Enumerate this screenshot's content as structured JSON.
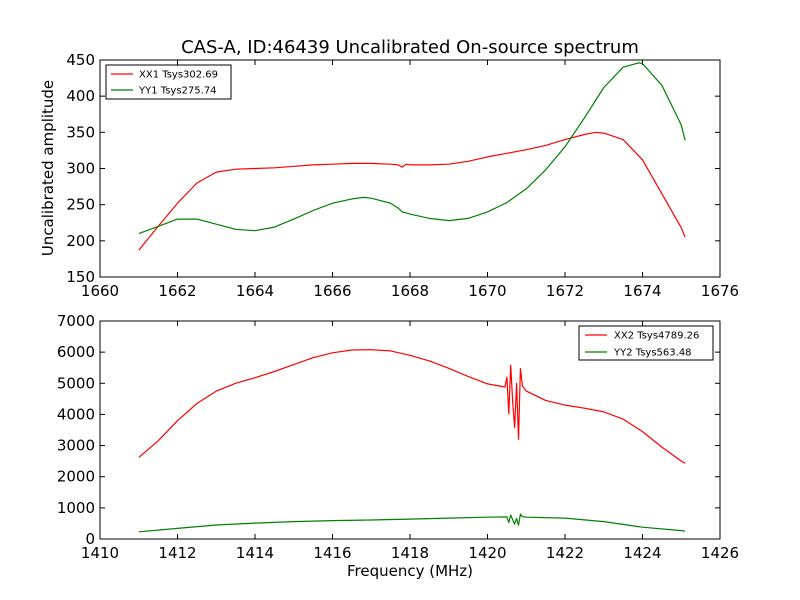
{
  "figure": {
    "title": "CAS-A, ID:46439 Uncalibrated On-source spectrum"
  },
  "chart_data": [
    {
      "type": "line",
      "title": "CAS-A, ID:46439 Uncalibrated On-source spectrum",
      "xlabel": "",
      "ylabel": "Uncalibrated amplitude",
      "xlim": [
        1660,
        1676
      ],
      "ylim": [
        150,
        450
      ],
      "xticks": [
        1660,
        1662,
        1664,
        1666,
        1668,
        1670,
        1672,
        1674,
        1676
      ],
      "yticks": [
        150,
        200,
        250,
        300,
        350,
        400,
        450
      ],
      "grid": false,
      "legend_position": "upper-left",
      "series": [
        {
          "name": "XX1 Tsys302.69",
          "color": "#ff0000",
          "x": [
            1661.0,
            1661.5,
            1662.0,
            1662.5,
            1663.0,
            1663.5,
            1664.0,
            1664.5,
            1665.0,
            1665.5,
            1666.0,
            1666.5,
            1667.0,
            1667.5,
            1667.7,
            1667.8,
            1667.9,
            1668.0,
            1668.5,
            1669.0,
            1669.5,
            1670.0,
            1670.5,
            1671.0,
            1671.5,
            1672.0,
            1672.5,
            1672.8,
            1673.0,
            1673.5,
            1674.0,
            1674.5,
            1675.0,
            1675.1
          ],
          "y": [
            187,
            220,
            252,
            280,
            295,
            299,
            300,
            301,
            303,
            305,
            306,
            307,
            307,
            306,
            305,
            302,
            306,
            305,
            305,
            306,
            310,
            316,
            321,
            326,
            332,
            340,
            347,
            350,
            349,
            340,
            312,
            265,
            218,
            205
          ]
        },
        {
          "name": "YY1 Tsys275.74",
          "color": "#008000",
          "x": [
            1661.0,
            1661.5,
            1662.0,
            1662.5,
            1663.0,
            1663.5,
            1664.0,
            1664.5,
            1665.0,
            1665.5,
            1666.0,
            1666.5,
            1666.8,
            1667.0,
            1667.5,
            1667.7,
            1667.8,
            1668.0,
            1668.5,
            1669.0,
            1669.5,
            1670.0,
            1670.5,
            1671.0,
            1671.5,
            1672.0,
            1672.5,
            1673.0,
            1673.5,
            1673.9,
            1674.0,
            1674.5,
            1675.0,
            1675.1
          ],
          "y": [
            210,
            220,
            230,
            230,
            223,
            216,
            214,
            219,
            230,
            242,
            252,
            258,
            260,
            259,
            252,
            245,
            240,
            237,
            231,
            228,
            231,
            240,
            253,
            272,
            298,
            330,
            370,
            412,
            440,
            446,
            445,
            415,
            360,
            339
          ]
        }
      ]
    },
    {
      "type": "line",
      "title": "",
      "xlabel": "Frequency (MHz)",
      "ylabel": "",
      "xlim": [
        1410,
        1426
      ],
      "ylim": [
        0,
        7000
      ],
      "xticks": [
        1410,
        1412,
        1414,
        1416,
        1418,
        1420,
        1422,
        1424,
        1426
      ],
      "yticks": [
        0,
        1000,
        2000,
        3000,
        4000,
        5000,
        6000,
        7000
      ],
      "grid": false,
      "legend_position": "upper-right",
      "series": [
        {
          "name": "XX2 Tsys4789.26",
          "color": "#ff0000",
          "x": [
            1411.0,
            1411.5,
            1412.0,
            1412.5,
            1413.0,
            1413.5,
            1414.0,
            1414.5,
            1415.0,
            1415.5,
            1416.0,
            1416.5,
            1417.0,
            1417.5,
            1418.0,
            1418.5,
            1419.0,
            1419.5,
            1420.0,
            1420.45,
            1420.5,
            1420.55,
            1420.6,
            1420.65,
            1420.7,
            1420.75,
            1420.8,
            1420.85,
            1420.9,
            1421.0,
            1421.5,
            1422.0,
            1422.5,
            1423.0,
            1423.5,
            1424.0,
            1424.5,
            1425.0,
            1425.1
          ],
          "y": [
            2620,
            3150,
            3800,
            4350,
            4750,
            5000,
            5180,
            5380,
            5600,
            5820,
            5980,
            6070,
            6080,
            6040,
            5900,
            5720,
            5480,
            5220,
            4980,
            4880,
            5200,
            4020,
            5580,
            4400,
            3580,
            5000,
            3200,
            5470,
            4920,
            4750,
            4450,
            4300,
            4200,
            4080,
            3850,
            3450,
            2950,
            2500,
            2430
          ]
        },
        {
          "name": "YY2 Tsys563.48",
          "color": "#008000",
          "x": [
            1411.0,
            1412.0,
            1413.0,
            1414.0,
            1415.0,
            1416.0,
            1417.0,
            1418.0,
            1419.0,
            1420.0,
            1420.5,
            1420.55,
            1420.6,
            1420.7,
            1420.75,
            1420.8,
            1420.85,
            1420.9,
            1421.0,
            1422.0,
            1423.0,
            1424.0,
            1425.0,
            1425.1
          ],
          "y": [
            230,
            340,
            450,
            510,
            560,
            590,
            610,
            640,
            670,
            700,
            710,
            530,
            770,
            480,
            660,
            440,
            800,
            720,
            700,
            670,
            560,
            380,
            270,
            250
          ]
        }
      ]
    }
  ]
}
